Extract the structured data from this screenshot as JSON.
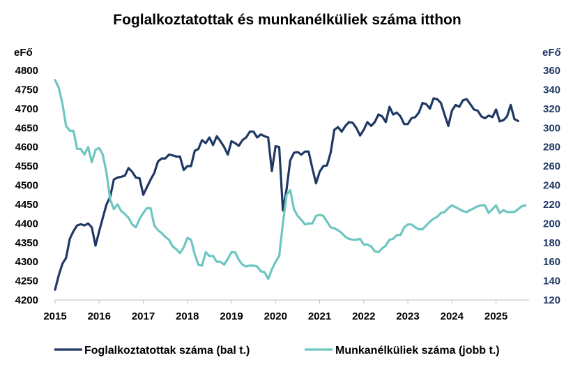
{
  "chart_data": {
    "type": "line",
    "title": "Foglalkoztatottak és munkanélküliek száma itthon",
    "ylabel_left": "eFő",
    "ylabel_right": "eFő",
    "ylim_left": [
      4200,
      4800
    ],
    "yticks_left": [
      4200,
      4250,
      4300,
      4350,
      4400,
      4450,
      4500,
      4550,
      4600,
      4650,
      4700,
      4750,
      4800
    ],
    "ylim_right": [
      120,
      360
    ],
    "yticks_right": [
      120,
      140,
      160,
      180,
      200,
      220,
      240,
      260,
      280,
      300,
      320,
      340,
      360
    ],
    "xlim": [
      2015,
      2025.75
    ],
    "xticks": [
      "2015",
      "2016",
      "2017",
      "2018",
      "2019",
      "2020",
      "2021",
      "2022",
      "2023",
      "2024",
      "2025"
    ],
    "legend_position": "bottom",
    "series": [
      {
        "name": "Foglalkoztatottak száma (bal t.)",
        "axis": "left",
        "color": "#1f3864",
        "x": [
          2015.0,
          2015.083,
          2015.167,
          2015.25,
          2015.333,
          2015.417,
          2015.5,
          2015.583,
          2015.667,
          2015.75,
          2015.833,
          2015.917,
          2016.0,
          2016.083,
          2016.167,
          2016.25,
          2016.333,
          2016.417,
          2016.5,
          2016.583,
          2016.667,
          2016.75,
          2016.833,
          2016.917,
          2017.0,
          2017.083,
          2017.167,
          2017.25,
          2017.333,
          2017.417,
          2017.5,
          2017.583,
          2017.667,
          2017.75,
          2017.833,
          2017.917,
          2018.0,
          2018.083,
          2018.167,
          2018.25,
          2018.333,
          2018.417,
          2018.5,
          2018.583,
          2018.667,
          2018.75,
          2018.833,
          2018.917,
          2019.0,
          2019.083,
          2019.167,
          2019.25,
          2019.333,
          2019.417,
          2019.5,
          2019.583,
          2019.667,
          2019.75,
          2019.833,
          2019.917,
          2020.0,
          2020.083,
          2020.167,
          2020.25,
          2020.333,
          2020.417,
          2020.5,
          2020.583,
          2020.667,
          2020.75,
          2020.833,
          2020.917,
          2021.0,
          2021.083,
          2021.167,
          2021.25,
          2021.333,
          2021.417,
          2021.5,
          2021.583,
          2021.667,
          2021.75,
          2021.833,
          2021.917,
          2022.0,
          2022.083,
          2022.167,
          2022.25,
          2022.333,
          2022.417,
          2022.5,
          2022.583,
          2022.667,
          2022.75,
          2022.833,
          2022.917,
          2023.0,
          2023.083,
          2023.167,
          2023.25,
          2023.333,
          2023.417,
          2023.5,
          2023.583,
          2023.667,
          2023.75,
          2023.833,
          2023.917,
          2024.0,
          2024.083,
          2024.167,
          2024.25,
          2024.333,
          2024.417,
          2024.5,
          2024.583,
          2024.667,
          2024.75,
          2024.833,
          2024.917,
          2025.0,
          2025.083,
          2025.167,
          2025.25,
          2025.333,
          2025.417,
          2025.5
        ],
        "values": [
          4227,
          4265,
          4295,
          4310,
          4360,
          4380,
          4395,
          4398,
          4395,
          4400,
          4390,
          4342,
          4380,
          4415,
          4450,
          4470,
          4515,
          4520,
          4522,
          4525,
          4545,
          4535,
          4520,
          4518,
          4475,
          4495,
          4515,
          4532,
          4562,
          4570,
          4570,
          4580,
          4578,
          4575,
          4575,
          4540,
          4550,
          4550,
          4590,
          4595,
          4618,
          4610,
          4625,
          4605,
          4628,
          4615,
          4600,
          4580,
          4615,
          4610,
          4603,
          4618,
          4625,
          4640,
          4640,
          4625,
          4633,
          4628,
          4625,
          4537,
          4602,
          4600,
          4434,
          4490,
          4565,
          4585,
          4587,
          4580,
          4588,
          4588,
          4545,
          4505,
          4535,
          4550,
          4552,
          4585,
          4645,
          4652,
          4640,
          4655,
          4665,
          4663,
          4650,
          4630,
          4645,
          4665,
          4655,
          4665,
          4685,
          4680,
          4665,
          4705,
          4685,
          4690,
          4680,
          4660,
          4660,
          4675,
          4678,
          4690,
          4715,
          4712,
          4700,
          4727,
          4725,
          4715,
          4685,
          4655,
          4695,
          4710,
          4705,
          4722,
          4725,
          4712,
          4698,
          4695,
          4680,
          4675,
          4682,
          4678,
          4698,
          4667,
          4670,
          4680,
          4710,
          4673,
          4668
        ]
      },
      {
        "name": "Munkanélküliek száma (jobb t.)",
        "axis": "right",
        "color": "#6ec6c0",
        "x": [
          2015.0,
          2015.083,
          2015.167,
          2015.25,
          2015.333,
          2015.417,
          2015.5,
          2015.583,
          2015.667,
          2015.75,
          2015.833,
          2015.917,
          2016.0,
          2016.083,
          2016.167,
          2016.25,
          2016.333,
          2016.417,
          2016.5,
          2016.583,
          2016.667,
          2016.75,
          2016.833,
          2016.917,
          2017.0,
          2017.083,
          2017.167,
          2017.25,
          2017.333,
          2017.417,
          2017.5,
          2017.583,
          2017.667,
          2017.75,
          2017.833,
          2017.917,
          2018.0,
          2018.083,
          2018.167,
          2018.25,
          2018.333,
          2018.417,
          2018.5,
          2018.583,
          2018.667,
          2018.75,
          2018.833,
          2018.917,
          2019.0,
          2019.083,
          2019.167,
          2019.25,
          2019.333,
          2019.417,
          2019.5,
          2019.583,
          2019.667,
          2019.75,
          2019.833,
          2019.917,
          2020.0,
          2020.083,
          2020.167,
          2020.25,
          2020.333,
          2020.417,
          2020.5,
          2020.583,
          2020.667,
          2020.75,
          2020.833,
          2020.917,
          2021.0,
          2021.083,
          2021.167,
          2021.25,
          2021.333,
          2021.417,
          2021.5,
          2021.583,
          2021.667,
          2021.75,
          2021.833,
          2021.917,
          2022.0,
          2022.083,
          2022.167,
          2022.25,
          2022.333,
          2022.417,
          2022.5,
          2022.583,
          2022.667,
          2022.75,
          2022.833,
          2022.917,
          2023.0,
          2023.083,
          2023.167,
          2023.25,
          2023.333,
          2023.417,
          2023.5,
          2023.583,
          2023.667,
          2023.75,
          2023.833,
          2023.917,
          2024.0,
          2024.083,
          2024.167,
          2024.25,
          2024.333,
          2024.417,
          2024.5,
          2024.583,
          2024.667,
          2024.75,
          2024.833,
          2024.917,
          2025.0,
          2025.083,
          2025.167,
          2025.25,
          2025.333,
          2025.417,
          2025.5,
          2025.583,
          2025.667
        ],
        "values": [
          350,
          342,
          325,
          302,
          297,
          297,
          278,
          278,
          272,
          280,
          264,
          277,
          279,
          272,
          253,
          225,
          215,
          220,
          213,
          210,
          206,
          199,
          196,
          205,
          211,
          216,
          216,
          198,
          193,
          190,
          186,
          183,
          176,
          173,
          169,
          175,
          185,
          183,
          168,
          157,
          156,
          170,
          166,
          166,
          160,
          160,
          157,
          163,
          170,
          170,
          162,
          157,
          155,
          156,
          156,
          155,
          150,
          149,
          142,
          152,
          160,
          166,
          200,
          230,
          235,
          215,
          208,
          204,
          199,
          200,
          200,
          208,
          209,
          208,
          202,
          196,
          195,
          193,
          190,
          186,
          184,
          183,
          183,
          184,
          178,
          178,
          176,
          171,
          170,
          174,
          177,
          183,
          184,
          188,
          188,
          196,
          199,
          199,
          196,
          194,
          194,
          198,
          202,
          205,
          207,
          211,
          212,
          216,
          219,
          217,
          215,
          213,
          212,
          214,
          216,
          218,
          219,
          219,
          211,
          215,
          219,
          211,
          214,
          212,
          212,
          212,
          215,
          218,
          219
        ]
      }
    ]
  }
}
